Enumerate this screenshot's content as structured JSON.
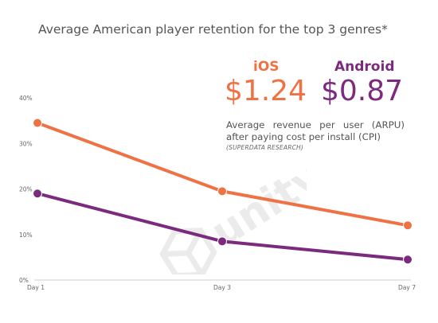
{
  "title": "Average American player retention for the top 3 genres*",
  "ios": {
    "label": "iOS",
    "arpu": "$1.24",
    "color": "#ee7244"
  },
  "android": {
    "label": "Android",
    "arpu": "$0.87",
    "color": "#7b2a7e"
  },
  "arpu_note": {
    "line1": "Average revenue per user (ARPU)",
    "line2": "after paying cost per install (CPI)",
    "source": "(SUPERDATA RESEARCH)"
  },
  "watermark": {
    "text": "unity",
    "icon": "unity-logo-icon"
  },
  "chart_data": {
    "type": "line",
    "title": "Average American player retention for the top 3 genres*",
    "categories": [
      "Day 1",
      "Day 3",
      "Day 7"
    ],
    "y_ticks": [
      "0%",
      "10%",
      "20%",
      "30%",
      "40%"
    ],
    "ylim": [
      0,
      40
    ],
    "grid": false,
    "series": [
      {
        "name": "iOS",
        "color": "#ee7244",
        "values": [
          34.5,
          19.5,
          12.0
        ]
      },
      {
        "name": "Android",
        "color": "#7b2a7e",
        "values": [
          19.0,
          8.5,
          4.5
        ]
      }
    ]
  }
}
